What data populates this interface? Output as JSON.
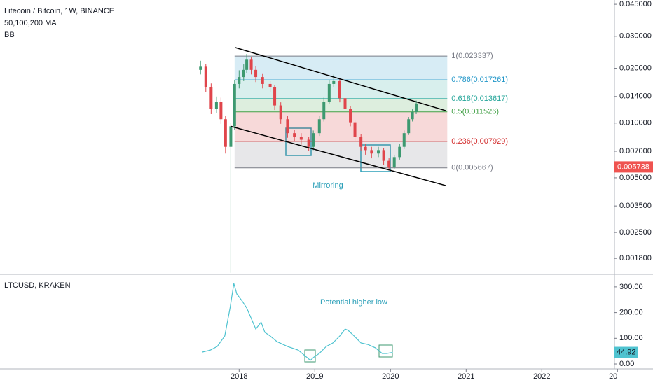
{
  "chart_data": [
    {
      "type": "candlestick",
      "title": "Litecoin / Bitcoin, 1W, BINANCE",
      "indicators": [
        "50,100,200 MA",
        "BB"
      ],
      "log_scale": true,
      "up_color": "#3d9970",
      "down_color": "#e0454b",
      "xlim": [
        2014.84,
        2022.96
      ],
      "xticks": [
        2018,
        2019,
        2020,
        2021,
        2022,
        {
          "value": 2023,
          "label": "20"
        }
      ],
      "ylim": [
        0.00147,
        0.0475
      ],
      "yticks": [
        {
          "value": 0.045,
          "label": "0.045000"
        },
        {
          "value": 0.03,
          "label": "0.030000"
        },
        {
          "value": 0.02,
          "label": "0.020000"
        },
        {
          "value": 0.014,
          "label": "0.014000"
        },
        {
          "value": 0.01,
          "label": "0.010000"
        },
        {
          "value": 0.007,
          "label": "0.007000"
        },
        {
          "value": 0.005,
          "label": "0.005000"
        },
        {
          "value": 0.0035,
          "label": "0.003500"
        },
        {
          "value": 0.0025,
          "label": "0.002500"
        },
        {
          "value": 0.0018,
          "label": "0.001800"
        }
      ],
      "x": [
        2017.49,
        2017.56,
        2017.63,
        2017.7,
        2017.76,
        2017.82,
        2017.89,
        2017.94,
        2018.0,
        2018.06,
        2018.1,
        2018.16,
        2018.22,
        2018.31,
        2018.41,
        2018.47,
        2018.55,
        2018.64,
        2018.73,
        2018.82,
        2018.92,
        2018.98,
        2019.06,
        2019.12,
        2019.19,
        2019.25,
        2019.33,
        2019.4,
        2019.47,
        2019.53,
        2019.61,
        2019.67,
        2019.75,
        2019.84,
        2019.91,
        2019.98,
        2020.05,
        2020.12,
        2020.18,
        2020.24,
        2020.29,
        2020.34
      ],
      "open": [
        0.0196,
        0.0204,
        0.0157,
        0.012,
        0.0131,
        0.0105,
        0.0074,
        0.0096,
        0.0164,
        0.0179,
        0.0196,
        0.0223,
        0.0196,
        0.0179,
        0.0164,
        0.0157,
        0.0125,
        0.0105,
        0.0088,
        0.0084,
        0.0081,
        0.0074,
        0.0088,
        0.0105,
        0.0131,
        0.0164,
        0.017,
        0.0137,
        0.012,
        0.0101,
        0.0084,
        0.0074,
        0.0071,
        0.0068,
        0.0071,
        0.0062,
        0.0057,
        0.0065,
        0.0074,
        0.0088,
        0.0105,
        0.0115
      ],
      "high": [
        0.022,
        0.0212,
        0.0165,
        0.014,
        0.0138,
        0.011,
        0.01,
        0.0172,
        0.0195,
        0.021,
        0.024,
        0.023,
        0.0205,
        0.0186,
        0.017,
        0.0162,
        0.013,
        0.0109,
        0.0092,
        0.0088,
        0.0084,
        0.0091,
        0.011,
        0.0138,
        0.0172,
        0.0185,
        0.0176,
        0.0142,
        0.0124,
        0.0104,
        0.0087,
        0.0077,
        0.0074,
        0.0074,
        0.0073,
        0.0064,
        0.0067,
        0.0077,
        0.0091,
        0.0108,
        0.0119,
        0.0133
      ],
      "low": [
        0.0185,
        0.0148,
        0.0112,
        0.0113,
        0.0099,
        0.0068,
        0.0015,
        0.0092,
        0.0155,
        0.017,
        0.0188,
        0.0185,
        0.0168,
        0.0155,
        0.0148,
        0.0118,
        0.0099,
        0.0083,
        0.0079,
        0.0076,
        0.007,
        0.0071,
        0.0085,
        0.0102,
        0.0128,
        0.0158,
        0.013,
        0.0114,
        0.0096,
        0.008,
        0.007,
        0.0067,
        0.0064,
        0.0065,
        0.0059,
        0.0055,
        0.0056,
        0.0063,
        0.0072,
        0.0086,
        0.0102,
        0.0112
      ],
      "close": [
        0.0204,
        0.0157,
        0.012,
        0.0131,
        0.0105,
        0.0074,
        0.0096,
        0.0164,
        0.0179,
        0.0196,
        0.0223,
        0.0196,
        0.0179,
        0.0164,
        0.0157,
        0.0125,
        0.0105,
        0.0088,
        0.0084,
        0.0081,
        0.0074,
        0.0088,
        0.0105,
        0.0131,
        0.0164,
        0.017,
        0.0137,
        0.012,
        0.0101,
        0.0084,
        0.0074,
        0.0071,
        0.0068,
        0.0071,
        0.0062,
        0.0057,
        0.0065,
        0.0074,
        0.0088,
        0.0105,
        0.0115,
        0.0128
      ],
      "fib_x": [
        2017.94,
        2020.75
      ],
      "fib_levels": [
        {
          "label": "1(0.023337)",
          "value": 0.023337,
          "color": "#787b86"
        },
        {
          "label": "0.786(0.017261)",
          "value": 0.017261,
          "color": "#2196c8"
        },
        {
          "label": "0.618(0.013617)",
          "value": 0.013617,
          "color": "#26a69a"
        },
        {
          "label": "0.5(0.011526)",
          "value": 0.011526,
          "color": "#43a047"
        },
        {
          "label": "0.236(0.007929)",
          "value": 0.007929,
          "color": "#d32f2f"
        },
        {
          "label": "0(0.005667)",
          "value": 0.005667,
          "color": "#787b86"
        }
      ],
      "trendlines": [
        [
          [
            2017.95,
            0.026
          ],
          [
            2020.73,
            0.0117
          ]
        ],
        [
          [
            2017.89,
            0.0096
          ],
          [
            2020.73,
            0.00453
          ]
        ]
      ],
      "last_price": 0.005738,
      "annotation": "Mirroring"
    },
    {
      "type": "line",
      "title": "LTCUSD, KRAKEN",
      "color": "#4fc3d0",
      "ylim": [
        -19,
        346
      ],
      "yticks": [
        {
          "value": 0,
          "label": "0.00"
        },
        {
          "value": 100,
          "label": "100.00"
        },
        {
          "value": 200,
          "label": "200.00"
        },
        {
          "value": 300,
          "label": "300.00"
        }
      ],
      "x": [
        2017.51,
        2017.62,
        2017.71,
        2017.81,
        2017.88,
        2017.93,
        2017.97,
        2018.04,
        2018.1,
        2018.16,
        2018.22,
        2018.29,
        2018.34,
        2018.41,
        2018.5,
        2018.64,
        2018.78,
        2018.89,
        2018.94,
        2018.99,
        2019.06,
        2019.15,
        2019.24,
        2019.33,
        2019.4,
        2019.44,
        2019.52,
        2019.61,
        2019.7,
        2019.8,
        2019.89,
        2019.95,
        2020.03
      ],
      "values": [
        46,
        54,
        68,
        109,
        218,
        313,
        272,
        245,
        218,
        177,
        136,
        163,
        123,
        109,
        87,
        68,
        54,
        27,
        14,
        27,
        41,
        68,
        82,
        109,
        136,
        131,
        109,
        82,
        76,
        63,
        41,
        41,
        45
      ],
      "last_value": 44.92,
      "annotation": "Potential higher low"
    }
  ]
}
